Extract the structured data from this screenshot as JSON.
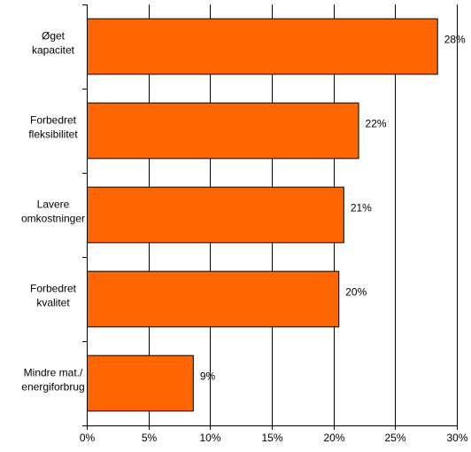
{
  "chart_data": {
    "type": "bar",
    "orientation": "horizontal",
    "categories": [
      [
        "Øget",
        "kapacitet"
      ],
      [
        "Forbedret",
        "fleksibilitet"
      ],
      [
        "Lavere",
        "omkostninger"
      ],
      [
        "Forbedret",
        "kvalitet"
      ],
      [
        "Mindre mat./",
        "energiforbrug"
      ]
    ],
    "values": [
      28.4,
      22.0,
      20.8,
      20.4,
      8.6
    ],
    "data_labels": [
      "28%",
      "22%",
      "21%",
      "20%",
      "9%"
    ],
    "x_ticks": [
      0,
      5,
      10,
      15,
      20,
      25,
      30
    ],
    "x_tick_labels": [
      "0%",
      "5%",
      "10%",
      "15%",
      "20%",
      "25%",
      "30%"
    ],
    "xlim": [
      0,
      30
    ],
    "title": "",
    "xlabel": "",
    "ylabel": "",
    "grid": "vertical",
    "legend": "none",
    "bar_color": "#FF6600"
  }
}
